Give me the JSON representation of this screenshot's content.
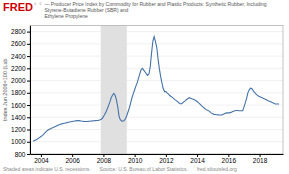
{
  "chart_data": {
    "type": "line",
    "title": "FRED",
    "subtitle": [
      "— Producer Price Index by Commodity for Rubber and Plastic Products: Synthetic Rubber, Including Styrene-Butadiene Rubber (SBR) and",
      "Ethylene Propylene"
    ],
    "ylabel": "Index Jun 2006=100 (Lab",
    "annotations": [
      "â¢",
      "Shaded areas indicate U.S. recessions.",
      "Source: U.S. Bureau of Labor Statistics.",
      "fred.stlouisfed.org"
    ],
    "recessions": [
      {
        "start": 2007.83,
        "end": 2009.5,
        "color": "#e0e0e0"
      }
    ],
    "color": "#4472a8",
    "grid": true,
    "xlim": [
      2003.3,
      2019.5
    ],
    "xticks": [
      2004,
      2006,
      2008,
      2010,
      2012,
      2014,
      2016,
      2018
    ],
    "ylim": [
      800,
      2900
    ],
    "yticks": [
      800,
      1000,
      1200,
      1400,
      1600,
      1800,
      2000,
      2200,
      2400,
      2600,
      2800
    ],
    "x": [
      2003.5,
      2003.58,
      2003.67,
      2003.75,
      2003.83,
      2003.92,
      2004.0,
      2004.08,
      2004.17,
      2004.25,
      2004.33,
      2004.42,
      2004.5,
      2004.58,
      2004.67,
      2004.75,
      2004.83,
      2004.92,
      2005.0,
      2005.08,
      2005.17,
      2005.25,
      2005.33,
      2005.42,
      2005.5,
      2005.58,
      2005.67,
      2005.75,
      2005.83,
      2005.92,
      2006.0,
      2006.08,
      2006.17,
      2006.25,
      2006.33,
      2006.42,
      2006.5,
      2006.58,
      2006.67,
      2006.75,
      2006.83,
      2006.92,
      2007.0,
      2007.08,
      2007.17,
      2007.25,
      2007.33,
      2007.42,
      2007.5,
      2007.58,
      2007.67,
      2007.75,
      2007.83,
      2007.92,
      2008.0,
      2008.08,
      2008.17,
      2008.25,
      2008.33,
      2008.42,
      2008.5,
      2008.58,
      2008.67,
      2008.75,
      2008.83,
      2008.92,
      2009.0,
      2009.08,
      2009.17,
      2009.25,
      2009.33,
      2009.42,
      2009.5,
      2009.58,
      2009.67,
      2009.75,
      2009.83,
      2009.92,
      2010.0,
      2010.08,
      2010.17,
      2010.25,
      2010.33,
      2010.42,
      2010.5,
      2010.58,
      2010.67,
      2010.75,
      2010.83,
      2010.92,
      2011.0,
      2011.08,
      2011.17,
      2011.25,
      2011.33,
      2011.42,
      2011.5,
      2011.58,
      2011.67,
      2011.75,
      2011.83,
      2011.92,
      2012.0,
      2012.08,
      2012.17,
      2012.25,
      2012.33,
      2012.42,
      2012.5,
      2012.58,
      2012.67,
      2012.75,
      2012.83,
      2012.92,
      2013.0,
      2013.08,
      2013.17,
      2013.25,
      2013.33,
      2013.42,
      2013.5,
      2013.58,
      2013.67,
      2013.75,
      2013.83,
      2013.92,
      2014.0,
      2014.08,
      2014.17,
      2014.25,
      2014.33,
      2014.42,
      2014.5,
      2014.58,
      2014.67,
      2014.75,
      2014.83,
      2014.92,
      2015.0,
      2015.08,
      2015.17,
      2015.25,
      2015.33,
      2015.42,
      2015.5,
      2015.58,
      2015.67,
      2015.75,
      2015.83,
      2015.92,
      2016.0,
      2016.08,
      2016.17,
      2016.25,
      2016.33,
      2016.42,
      2016.5,
      2016.58,
      2016.67,
      2016.75,
      2016.83,
      2016.92,
      2017.0,
      2017.08,
      2017.17,
      2017.25,
      2017.33,
      2017.42,
      2017.5,
      2017.58,
      2017.67,
      2017.75,
      2017.83,
      2017.92,
      2018.0,
      2018.08,
      2018.17,
      2018.25,
      2018.33,
      2018.42,
      2018.5,
      2018.58,
      2018.67,
      2018.75,
      2018.83,
      2018.92,
      2019.0,
      2019.08,
      2019.17,
      2019.25
    ],
    "values": [
      1010,
      1020,
      1030,
      1040,
      1055,
      1070,
      1085,
      1100,
      1120,
      1145,
      1165,
      1185,
      1200,
      1210,
      1220,
      1228,
      1238,
      1248,
      1258,
      1268,
      1278,
      1286,
      1292,
      1298,
      1303,
      1308,
      1313,
      1318,
      1322,
      1326,
      1330,
      1334,
      1338,
      1342,
      1345,
      1345,
      1342,
      1338,
      1335,
      1333,
      1332,
      1332,
      1333,
      1335,
      1337,
      1340,
      1342,
      1344,
      1346,
      1348,
      1350,
      1355,
      1362,
      1380,
      1410,
      1445,
      1490,
      1540,
      1595,
      1655,
      1720,
      1760,
      1790,
      1760,
      1690,
      1570,
      1420,
      1360,
      1340,
      1338,
      1345,
      1380,
      1430,
      1490,
      1560,
      1640,
      1720,
      1790,
      1850,
      1910,
      1970,
      2040,
      2110,
      2180,
      2200,
      2170,
      2140,
      2110,
      2085,
      2110,
      2230,
      2440,
      2650,
      2720,
      2640,
      2540,
      2350,
      2200,
      2060,
      1960,
      1870,
      1820,
      1820,
      1800,
      1780,
      1755,
      1740,
      1725,
      1705,
      1688,
      1672,
      1655,
      1638,
      1620,
      1620,
      1638,
      1655,
      1672,
      1690,
      1708,
      1720,
      1712,
      1702,
      1695,
      1685,
      1675,
      1658,
      1640,
      1618,
      1598,
      1578,
      1558,
      1540,
      1525,
      1515,
      1505,
      1488,
      1468,
      1458,
      1448,
      1445,
      1442,
      1440,
      1438,
      1438,
      1440,
      1448,
      1458,
      1468,
      1472,
      1472,
      1472,
      1480,
      1490,
      1500,
      1508,
      1510,
      1510,
      1508,
      1508,
      1508,
      1508,
      1565,
      1630,
      1710,
      1800,
      1845,
      1875,
      1870,
      1840,
      1808,
      1785,
      1765,
      1748,
      1740,
      1728,
      1718,
      1708,
      1698,
      1688,
      1678,
      1668,
      1658,
      1648,
      1638,
      1628,
      1618,
      1618,
      1618,
      1618
    ]
  }
}
